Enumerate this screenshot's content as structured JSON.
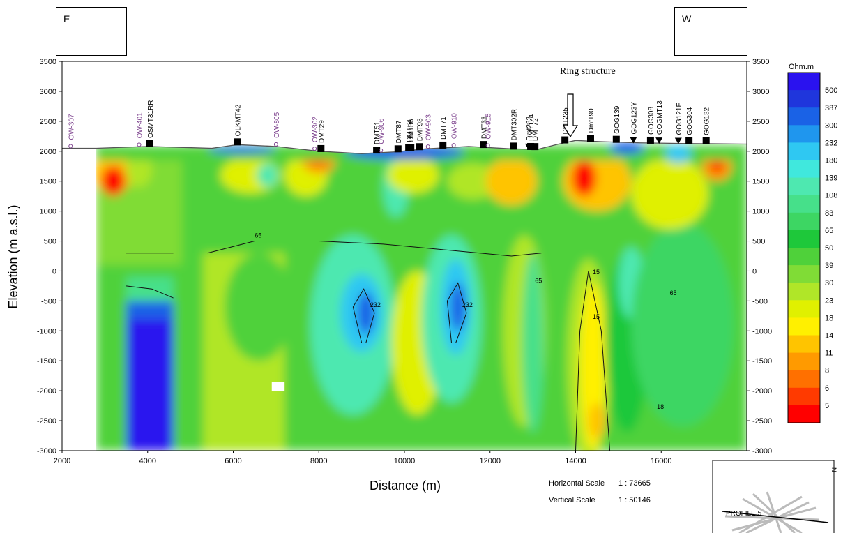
{
  "direction_left": "E",
  "direction_right": "W",
  "annotation": "Ring structure",
  "ylabel": "Elevation (m a.s.l.)",
  "xlabel": "Distance (m)",
  "colorbar_title": "Ohm.m",
  "horizontal_scale_label": "Horizontal Scale",
  "horizontal_scale_value": "1 : 73665",
  "vertical_scale_label": "Vertical Scale",
  "vertical_scale_value": "1 : 50146",
  "inset_label": "PROFILE 5",
  "inset_north": "N",
  "colors": {
    "scale": [
      "#ff0000",
      "#ff3a00",
      "#ff7000",
      "#ff9a00",
      "#ffc400",
      "#fff000",
      "#e0f000",
      "#b0e628",
      "#80dc36",
      "#4fd13a",
      "#1ec83a",
      "#3dd663",
      "#46e08a",
      "#4ee8b0",
      "#40e8dd",
      "#2fc8f2",
      "#1f96ee",
      "#1a62e6",
      "#1f36dc",
      "#2a12ef"
    ]
  },
  "chart_data": {
    "type": "heatmap",
    "xlim": [
      2000,
      18000
    ],
    "ylim": [
      -3000,
      3500
    ],
    "x_ticks": [
      2000,
      4000,
      6000,
      8000,
      10000,
      12000,
      14000,
      16000
    ],
    "x_tick_labels": [
      "2000",
      "4000",
      "6000",
      "8000",
      "10000",
      "12000",
      "14000",
      "16000"
    ],
    "y_ticks": [
      3500,
      3000,
      2500,
      2000,
      1500,
      1000,
      500,
      0,
      -500,
      -1000,
      -1500,
      -2000,
      -2500,
      -3000
    ],
    "y_tick_labels": [
      "3500",
      "3000",
      "2500",
      "2000",
      "1500",
      "1000",
      "500",
      "0",
      "-500",
      "-1000",
      "-1500",
      "-2000",
      "-2500",
      "-3000"
    ],
    "colorbar_levels": [
      "500",
      "387",
      "300",
      "232",
      "180",
      "139",
      "108",
      "83",
      "65",
      "50",
      "39",
      "30",
      "23",
      "18",
      "14",
      "11",
      "8",
      "6",
      "5"
    ],
    "contour_labels": [
      "65",
      "232",
      "232",
      "65",
      "15",
      "15",
      "18",
      "65"
    ],
    "stations": [
      {
        "name": "OW-307",
        "x": 2200,
        "kind": "well"
      },
      {
        "name": "OW-401",
        "x": 3800,
        "kind": "well"
      },
      {
        "name": "OSMT31RR",
        "x": 4050,
        "kind": "mt"
      },
      {
        "name": "OLKMT42",
        "x": 6100,
        "kind": "mt"
      },
      {
        "name": "OW-805",
        "x": 7000,
        "kind": "well"
      },
      {
        "name": "OW-302",
        "x": 7900,
        "kind": "well"
      },
      {
        "name": "DMT29",
        "x": 8050,
        "kind": "mt"
      },
      {
        "name": "DMT51",
        "x": 9350,
        "kind": "mt"
      },
      {
        "name": "OW-906",
        "x": 9450,
        "kind": "well"
      },
      {
        "name": "DMT87",
        "x": 9850,
        "kind": "mt"
      },
      {
        "name": "DMT64",
        "x": 10100,
        "kind": "mt"
      },
      {
        "name": "DMT86",
        "x": 10150,
        "kind": "mt"
      },
      {
        "name": "DMT93",
        "x": 10350,
        "kind": "mt"
      },
      {
        "name": "OW-903",
        "x": 10550,
        "kind": "well"
      },
      {
        "name": "DMT71",
        "x": 10900,
        "kind": "mt"
      },
      {
        "name": "OW-910",
        "x": 11150,
        "kind": "well"
      },
      {
        "name": "DMT33",
        "x": 11850,
        "kind": "mt"
      },
      {
        "name": "OW-915",
        "x": 11950,
        "kind": "well"
      },
      {
        "name": "DMT302R",
        "x": 12550,
        "kind": "mt"
      },
      {
        "name": "Dmt283",
        "x": 12900,
        "kind": "tem"
      },
      {
        "name": "DMT124",
        "x": 12950,
        "kind": "mt"
      },
      {
        "name": "DMT72",
        "x": 13050,
        "kind": "mt"
      },
      {
        "name": "DMT235",
        "x": 13750,
        "kind": "mt"
      },
      {
        "name": "Dmt190",
        "x": 14350,
        "kind": "mt"
      },
      {
        "name": "GOG139",
        "x": 14950,
        "kind": "mt"
      },
      {
        "name": "GOG123Y",
        "x": 15350,
        "kind": "tem"
      },
      {
        "name": "GOG308",
        "x": 15750,
        "kind": "mt"
      },
      {
        "name": "GOGMT13",
        "x": 15950,
        "kind": "tem"
      },
      {
        "name": "GOG121F",
        "x": 16400,
        "kind": "tem"
      },
      {
        "name": "GOG304",
        "x": 16650,
        "kind": "mt"
      },
      {
        "name": "GOG132",
        "x": 17050,
        "kind": "mt"
      }
    ]
  }
}
